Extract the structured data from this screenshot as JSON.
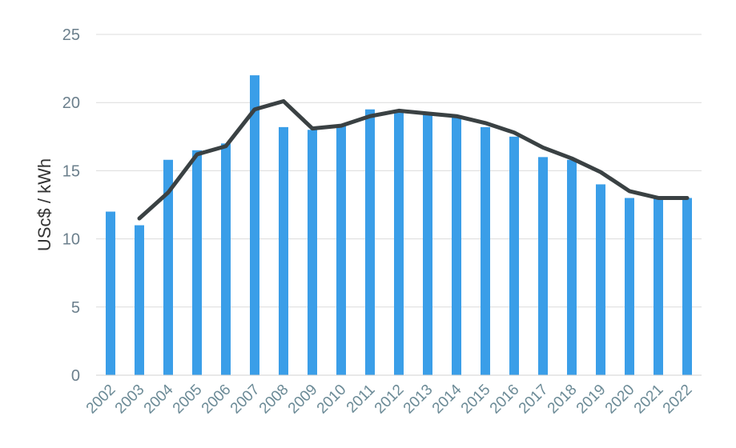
{
  "chart_data": {
    "type": "bar",
    "title": "",
    "xlabel": "",
    "ylabel": "USc$ / kWh",
    "ylim": [
      0,
      25
    ],
    "yticks": [
      0,
      5,
      10,
      15,
      20,
      25
    ],
    "grid": true,
    "legend": "none",
    "categories": [
      "2002",
      "2003",
      "2004",
      "2005",
      "2006",
      "2007",
      "2008",
      "2009",
      "2010",
      "2011",
      "2012",
      "2013",
      "2014",
      "2015",
      "2016",
      "2017",
      "2018",
      "2019",
      "2020",
      "2021",
      "2022"
    ],
    "series": [
      {
        "type": "bar",
        "color": "#3a9ee8",
        "values": [
          12.0,
          11.0,
          15.8,
          16.5,
          17.0,
          22.0,
          18.2,
          18.0,
          18.3,
          19.5,
          19.3,
          19.2,
          19.0,
          18.2,
          17.5,
          16.0,
          15.8,
          14.0,
          13.0,
          13.0,
          13.0
        ]
      },
      {
        "type": "line",
        "color": "#3a4143",
        "values": [
          null,
          11.5,
          13.4,
          16.2,
          16.8,
          19.5,
          20.1,
          18.1,
          18.3,
          19.0,
          19.4,
          19.2,
          19.0,
          18.5,
          17.8,
          16.7,
          15.9,
          14.9,
          13.5,
          13.0,
          13.0
        ]
      }
    ]
  }
}
